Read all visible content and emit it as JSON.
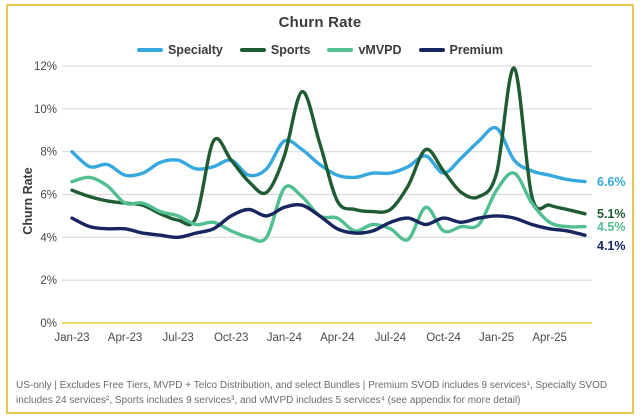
{
  "chart_data": {
    "type": "line",
    "title": "Churn Rate",
    "ylabel": "Churn Rate",
    "xlabel": "",
    "ylim": [
      0,
      12
    ],
    "y_ticks": [
      "0%",
      "2%",
      "4%",
      "6%",
      "8%",
      "10%",
      "12%"
    ],
    "grid": "horizontal-gray",
    "legend_position": "top",
    "x_tick_every": 3,
    "x": [
      "Jan-23",
      "Feb-23",
      "Mar-23",
      "Apr-23",
      "May-23",
      "Jun-23",
      "Jul-23",
      "Aug-23",
      "Sep-23",
      "Oct-23",
      "Nov-23",
      "Dec-23",
      "Jan-24",
      "Feb-24",
      "Mar-24",
      "Apr-24",
      "May-24",
      "Jun-24",
      "Jul-24",
      "Aug-24",
      "Sep-24",
      "Oct-24",
      "Nov-24",
      "Dec-24",
      "Jan-25",
      "Feb-25",
      "Mar-25",
      "Apr-25",
      "May-25",
      "Jun-25"
    ],
    "series": [
      {
        "name": "Specialty",
        "color": "#35a8dd",
        "end_label": "6.6%",
        "values": [
          8.0,
          7.3,
          7.4,
          6.9,
          7.0,
          7.5,
          7.6,
          7.2,
          7.3,
          7.6,
          6.9,
          7.2,
          8.5,
          8.1,
          7.4,
          6.9,
          6.8,
          7.0,
          7.0,
          7.3,
          7.8,
          7.0,
          7.7,
          8.5,
          9.1,
          7.6,
          7.1,
          6.9,
          6.7,
          6.6
        ]
      },
      {
        "name": "Sports",
        "color": "#1f5c33",
        "end_label": "5.1%",
        "values": [
          6.2,
          5.9,
          5.7,
          5.6,
          5.5,
          5.1,
          4.8,
          4.9,
          8.5,
          7.6,
          6.6,
          6.1,
          7.8,
          10.8,
          8.4,
          5.7,
          5.3,
          5.2,
          5.3,
          6.4,
          8.1,
          7.1,
          6.1,
          5.9,
          7.0,
          11.9,
          5.9,
          5.5,
          5.3,
          5.1
        ]
      },
      {
        "name": "vMVPD",
        "color": "#52bf93",
        "end_label": "4.5%",
        "values": [
          6.6,
          6.8,
          6.4,
          5.6,
          5.6,
          5.2,
          5.0,
          4.6,
          4.7,
          4.3,
          4.0,
          4.0,
          6.3,
          5.9,
          5.0,
          4.9,
          4.3,
          4.6,
          4.4,
          3.9,
          5.4,
          4.3,
          4.5,
          4.6,
          6.2,
          7.0,
          5.6,
          4.7,
          4.5,
          4.5
        ]
      },
      {
        "name": "Premium",
        "color": "#17265e",
        "end_label": "4.1%",
        "values": [
          4.9,
          4.5,
          4.4,
          4.4,
          4.2,
          4.1,
          4.0,
          4.2,
          4.4,
          5.0,
          5.3,
          5.0,
          5.4,
          5.5,
          5.0,
          4.4,
          4.2,
          4.3,
          4.7,
          4.9,
          4.6,
          4.9,
          4.7,
          4.9,
          5.0,
          4.9,
          4.6,
          4.4,
          4.3,
          4.1
        ]
      }
    ]
  },
  "frame": {
    "border_color": "#e6c84f",
    "baseline_color": "#efdc6a",
    "gridline_color": "#d9d9d9"
  },
  "footnote": "US-only | Excludes Free Tiers, MVPD + Telco Distribution, and select Bundles | Premium SVOD includes 9 services¹, Specialty SVOD includes 24 services², Sports includes 9 services³, and vMVPD includes 5 services⁴ (see appendix for more detail)"
}
